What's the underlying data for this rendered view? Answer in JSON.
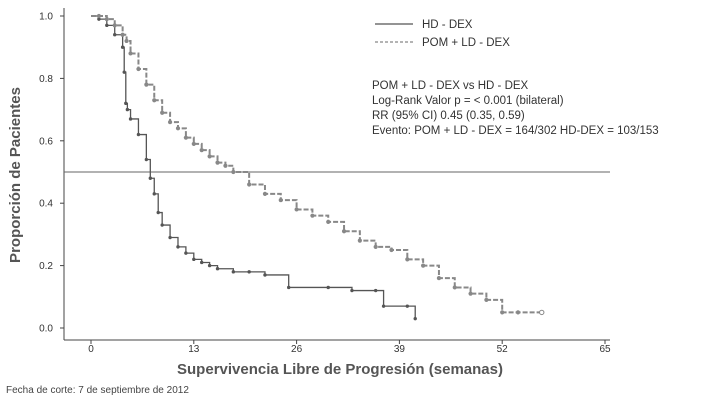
{
  "chart_data": {
    "type": "line",
    "title": "",
    "xlabel": "Supervivencia Libre de Progresión (semanas)",
    "ylabel": "Proporción de Pacientes",
    "xlim": [
      0,
      65
    ],
    "ylim": [
      0,
      1.0
    ],
    "x_ticks": [
      "0",
      "13",
      "26",
      "39",
      "52",
      "65"
    ],
    "y_ticks": [
      "0.0",
      "0.2",
      "0.4",
      "0.6",
      "0.8",
      "1.0"
    ],
    "grid": false,
    "reference_line_y": 0.5,
    "legend_position": "top-right",
    "series": [
      {
        "name": "HD - DEX",
        "style": "solid",
        "color": "#555555",
        "x": [
          0,
          1,
          2,
          3,
          4,
          4.2,
          4.4,
          4.6,
          5,
          6,
          7,
          7.5,
          8,
          8.5,
          9,
          10,
          11,
          12,
          13,
          14,
          15,
          16,
          18,
          20,
          22,
          25,
          30,
          33,
          36,
          37,
          40,
          41
        ],
        "y": [
          1.0,
          0.99,
          0.97,
          0.94,
          0.9,
          0.82,
          0.72,
          0.7,
          0.67,
          0.62,
          0.54,
          0.48,
          0.43,
          0.37,
          0.33,
          0.29,
          0.26,
          0.24,
          0.22,
          0.21,
          0.2,
          0.19,
          0.18,
          0.18,
          0.17,
          0.13,
          0.13,
          0.12,
          0.12,
          0.07,
          0.07,
          0.03
        ]
      },
      {
        "name": "POM + LD - DEX",
        "style": "dashed",
        "color": "#888888",
        "x": [
          0,
          1,
          2,
          3,
          4,
          4.5,
          5,
          6,
          7,
          8,
          9,
          10,
          11,
          12,
          13,
          14,
          15,
          16,
          17,
          18,
          20,
          22,
          24,
          26,
          28,
          30,
          32,
          34,
          36,
          38,
          40,
          42,
          44,
          46,
          48,
          50,
          52,
          54,
          57
        ],
        "y": [
          1.0,
          1.0,
          0.99,
          0.97,
          0.94,
          0.92,
          0.88,
          0.83,
          0.78,
          0.73,
          0.69,
          0.66,
          0.64,
          0.61,
          0.59,
          0.57,
          0.55,
          0.53,
          0.52,
          0.5,
          0.46,
          0.43,
          0.41,
          0.38,
          0.36,
          0.34,
          0.31,
          0.28,
          0.26,
          0.25,
          0.22,
          0.2,
          0.16,
          0.13,
          0.11,
          0.09,
          0.05,
          0.05,
          0.05
        ]
      }
    ],
    "annotations": [
      "POM + LD - DEX vs HD - DEX",
      "Log-Rank Valor p = < 0.001 (bilateral)",
      "RR (95% CI) 0.45 (0.35, 0.59)",
      "Evento: POM + LD - DEX = 164/302 HD-DEX = 103/153"
    ]
  },
  "footnote": "Fecha de corte: 7 de septiembre de 2012",
  "colors": {
    "axis": "#444444",
    "reference_line": "#666666",
    "text": "#333333"
  }
}
